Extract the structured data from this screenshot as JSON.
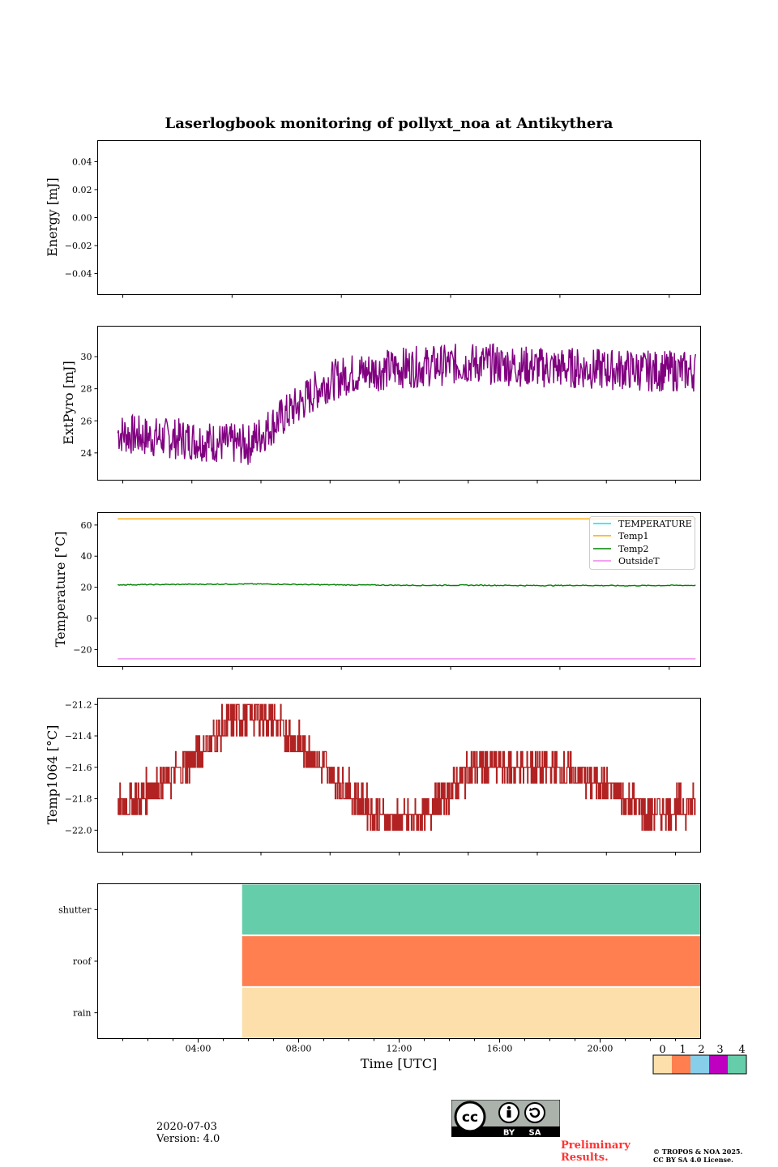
{
  "chart_data": [
    {
      "type": "line",
      "title": "Laserlogbook monitoring of pollyxt_noa at Antikythera",
      "ylabel": "Energy [mJ]",
      "ylim": [
        -0.055,
        0.055
      ],
      "yticks": [
        "0.04",
        "0.02",
        "0.00",
        "−0.02",
        "−0.04"
      ],
      "series": []
    },
    {
      "type": "line",
      "ylabel": "ExtPyro [mJ]",
      "ylim": [
        22.3,
        31.9
      ],
      "yticks": [
        "24",
        "26",
        "28",
        "30"
      ],
      "color": "#800080",
      "x_range_hours": [
        0.8,
        23.8
      ],
      "series": [
        {
          "values_hourly": [
            25.5,
            25.2,
            25.0,
            24.9,
            24.8,
            24.6,
            24.5,
            25.8,
            27.0,
            28.3,
            28.9,
            29.1,
            29.3,
            29.4,
            29.5,
            29.6,
            29.5,
            29.4,
            29.3,
            29.3,
            29.2,
            29.2,
            29.1,
            29.1
          ]
        }
      ]
    },
    {
      "type": "line",
      "ylabel": "Temperature [°C]",
      "ylim": [
        -31,
        68
      ],
      "yticks": [
        "60",
        "40",
        "20",
        "0",
        "−20"
      ],
      "legend": {
        "placement": "upper-right",
        "entries": [
          "TEMPERATURE",
          "Temp1",
          "Temp2",
          "OutsideT"
        ]
      },
      "series": [
        {
          "name": "TEMPERATURE",
          "color": "#00e5ee",
          "values": [
            64,
            64
          ]
        },
        {
          "name": "Temp1",
          "color": "#ffa500",
          "values": [
            64,
            64
          ]
        },
        {
          "name": "Temp2",
          "color": "#008000",
          "values_hourly": [
            21.5,
            21.6,
            21.7,
            21.8,
            21.9,
            22.0,
            22.1,
            22.0,
            21.8,
            21.6,
            21.5,
            21.4,
            21.3,
            21.2,
            21.3,
            21.3,
            21.2,
            21.1,
            21.1,
            21.2,
            21.1,
            21.0,
            21.1,
            21.2
          ]
        },
        {
          "name": "OutsideT",
          "color": "#ee82ee",
          "values": [
            -26,
            -26
          ]
        }
      ]
    },
    {
      "type": "line",
      "ylabel": "Temp1064 [°C]",
      "ylim": [
        -22.14,
        -21.16
      ],
      "yticks": [
        "−21.2",
        "−21.4",
        "−21.6",
        "−21.8",
        "−22.0"
      ],
      "color": "#b22222",
      "series": [
        {
          "values_hourly": [
            -21.9,
            -21.85,
            -21.75,
            -21.65,
            -21.5,
            -21.35,
            -21.25,
            -21.3,
            -21.45,
            -21.6,
            -21.75,
            -21.9,
            -21.95,
            -21.9,
            -21.75,
            -21.6,
            -21.6,
            -21.6,
            -21.6,
            -21.65,
            -21.7,
            -21.8,
            -21.9,
            -21.85
          ]
        }
      ]
    },
    {
      "type": "heatmap",
      "xlabel": "Time [UTC]",
      "rows": [
        "shutter",
        "roof",
        "rain"
      ],
      "xticks": [
        "04:00",
        "08:00",
        "12:00",
        "16:00",
        "20:00"
      ],
      "segments": [
        {
          "row": "shutter",
          "from_hour": 5.75,
          "to_hour": 24,
          "value": 4
        },
        {
          "row": "roof",
          "from_hour": 5.75,
          "to_hour": 24,
          "value": 1
        },
        {
          "row": "rain",
          "from_hour": 5.75,
          "to_hour": 24,
          "value": 0
        }
      ],
      "colorbar": {
        "labels": [
          "0",
          "1",
          "2",
          "3",
          "4"
        ],
        "colors": [
          "#fcdfaa",
          "#ff7f50",
          "#87ceeb",
          "#c000c0",
          "#66cdaa"
        ]
      }
    }
  ],
  "footer": {
    "date": "2020-07-03",
    "version": "Version: 4.0",
    "preliminary_line1": "Preliminary",
    "preliminary_line2": "Results.",
    "copyright_line1": "© TROPOS & NOA 2025.",
    "copyright_line2": "CC BY SA 4.0 License.",
    "cc_by": "BY",
    "cc_sa": "SA"
  }
}
